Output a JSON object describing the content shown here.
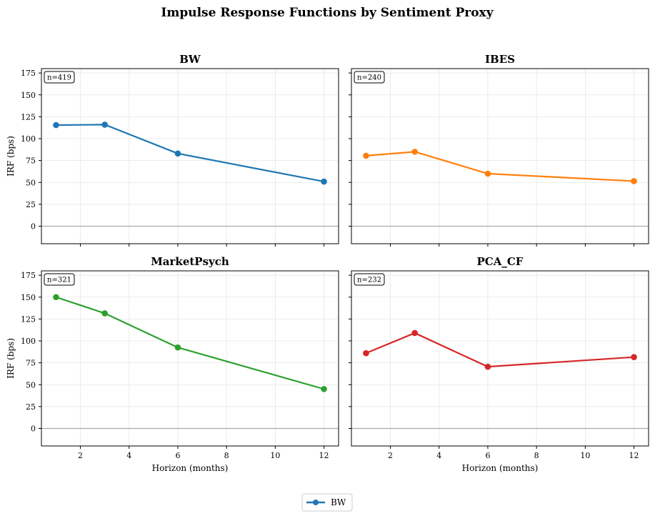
{
  "figure": {
    "title": "Impulse Response Functions by Sentiment Proxy"
  },
  "legend": {
    "label": "BW",
    "color": "#1f77b4"
  },
  "chart_data": [
    {
      "type": "line",
      "title": "BW",
      "n_label": "n=419",
      "color": "#1f77b4",
      "x": [
        1,
        3,
        6,
        12
      ],
      "y": [
        115.5,
        116,
        83,
        51
      ],
      "xlabel": "",
      "ylabel": "IRF (bps)",
      "xlim": [
        0.4,
        12.6
      ],
      "ylim": [
        -20,
        180
      ],
      "xticks": [
        2,
        4,
        6,
        8,
        10,
        12
      ],
      "yticks": [
        0,
        25,
        50,
        75,
        100,
        125,
        150,
        175
      ],
      "show_xtick_labels": false,
      "show_ytick_labels": true,
      "grid": true
    },
    {
      "type": "line",
      "title": "IBES",
      "n_label": "n=240",
      "color": "#ff7f0e",
      "x": [
        1,
        3,
        6,
        12
      ],
      "y": [
        80.5,
        85,
        60,
        51.5
      ],
      "xlabel": "",
      "ylabel": "",
      "xlim": [
        0.4,
        12.6
      ],
      "ylim": [
        -20,
        180
      ],
      "xticks": [
        2,
        4,
        6,
        8,
        10,
        12
      ],
      "yticks": [
        0,
        25,
        50,
        75,
        100,
        125,
        150,
        175
      ],
      "show_xtick_labels": false,
      "show_ytick_labels": false,
      "grid": true
    },
    {
      "type": "line",
      "title": "MarketPsych",
      "n_label": "n=321",
      "color": "#2ca02c",
      "x": [
        1,
        3,
        6,
        12
      ],
      "y": [
        150,
        131.5,
        92.5,
        45
      ],
      "xlabel": "Horizon (months)",
      "ylabel": "IRF (bps)",
      "xlim": [
        0.4,
        12.6
      ],
      "ylim": [
        -20,
        180
      ],
      "xticks": [
        2,
        4,
        6,
        8,
        10,
        12
      ],
      "yticks": [
        0,
        25,
        50,
        75,
        100,
        125,
        150,
        175
      ],
      "show_xtick_labels": true,
      "show_ytick_labels": true,
      "grid": true
    },
    {
      "type": "line",
      "title": "PCA_CF",
      "n_label": "n=232",
      "color": "#d62728",
      "x": [
        1,
        3,
        6,
        12
      ],
      "y": [
        86,
        109,
        70.5,
        81.5
      ],
      "xlabel": "Horizon (months)",
      "ylabel": "",
      "xlim": [
        0.4,
        12.6
      ],
      "ylim": [
        -20,
        180
      ],
      "xticks": [
        2,
        4,
        6,
        8,
        10,
        12
      ],
      "yticks": [
        0,
        25,
        50,
        75,
        100,
        125,
        150,
        175
      ],
      "show_xtick_labels": true,
      "show_ytick_labels": false,
      "grid": true
    }
  ]
}
